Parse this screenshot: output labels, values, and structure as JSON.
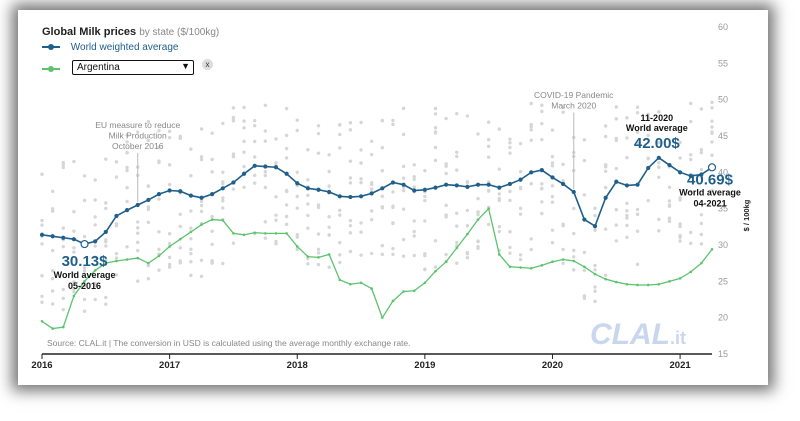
{
  "header": {
    "title": "Global Milk prices",
    "subtitle": "by state ($/100kg)"
  },
  "legend": {
    "world_label": "World weighted average",
    "country_selected": "Argentina",
    "close_symbol": "x"
  },
  "colors": {
    "world": "#1f5f8b",
    "country": "#5cc46e",
    "background_dots": "#d6d6d6",
    "annotation_gray": "#888888"
  },
  "source_note": "Source: CLAL.it | The conversion in USD is calculated using the average monthly exchange rate.",
  "watermark": "CLAL.it",
  "chart_data": {
    "type": "line",
    "ylabel": "$ / 100kg",
    "ylim": [
      15,
      60
    ],
    "y_ticks": [
      15,
      20,
      25,
      30,
      35,
      40,
      45,
      50,
      55,
      60
    ],
    "x_tick_labels": [
      "2016",
      "2017",
      "2018",
      "2019",
      "2020",
      "2021"
    ],
    "x_start": "2016-01",
    "x_end": "2021-04",
    "grid": false,
    "series": [
      {
        "name": "World weighted average",
        "months": [
          "2016-01",
          "2016-02",
          "2016-03",
          "2016-04",
          "2016-05",
          "2016-06",
          "2016-07",
          "2016-08",
          "2016-09",
          "2016-10",
          "2016-11",
          "2016-12",
          "2017-01",
          "2017-02",
          "2017-03",
          "2017-04",
          "2017-05",
          "2017-06",
          "2017-07",
          "2017-08",
          "2017-09",
          "2017-10",
          "2017-11",
          "2017-12",
          "2018-01",
          "2018-02",
          "2018-03",
          "2018-04",
          "2018-05",
          "2018-06",
          "2018-07",
          "2018-08",
          "2018-09",
          "2018-10",
          "2018-11",
          "2018-12",
          "2019-01",
          "2019-02",
          "2019-03",
          "2019-04",
          "2019-05",
          "2019-06",
          "2019-07",
          "2019-08",
          "2019-09",
          "2019-10",
          "2019-11",
          "2019-12",
          "2020-01",
          "2020-02",
          "2020-03",
          "2020-04",
          "2020-05",
          "2020-06",
          "2020-07",
          "2020-08",
          "2020-09",
          "2020-10",
          "2020-11",
          "2020-12",
          "2021-01",
          "2021-02",
          "2021-03",
          "2021-04"
        ],
        "values": [
          31.4,
          31.2,
          31.0,
          30.8,
          30.13,
          30.5,
          31.8,
          34.0,
          34.8,
          35.5,
          36.2,
          37.0,
          37.5,
          37.4,
          36.8,
          36.5,
          37.0,
          37.8,
          38.6,
          39.8,
          40.9,
          40.8,
          40.7,
          39.8,
          38.5,
          37.8,
          37.6,
          37.3,
          36.7,
          36.6,
          36.7,
          37.1,
          37.8,
          38.6,
          38.3,
          37.5,
          37.6,
          37.9,
          38.3,
          38.2,
          38.0,
          38.3,
          38.3,
          37.9,
          38.4,
          39.0,
          40.0,
          40.3,
          39.3,
          38.4,
          37.3,
          33.5,
          32.6,
          36.5,
          38.7,
          38.2,
          38.3,
          40.6,
          42.0,
          41.0,
          40.0,
          39.5,
          39.7,
          40.69
        ]
      },
      {
        "name": "Argentina",
        "months": [
          "2016-01",
          "2016-02",
          "2016-03",
          "2016-04",
          "2016-05",
          "2016-06",
          "2016-07",
          "2016-08",
          "2016-09",
          "2016-10",
          "2016-11",
          "2016-12",
          "2017-01",
          "2017-02",
          "2017-03",
          "2017-04",
          "2017-05",
          "2017-06",
          "2017-07",
          "2017-08",
          "2017-09",
          "2017-10",
          "2017-11",
          "2017-12",
          "2018-01",
          "2018-02",
          "2018-03",
          "2018-04",
          "2018-05",
          "2018-06",
          "2018-07",
          "2018-08",
          "2018-09",
          "2018-10",
          "2018-11",
          "2018-12",
          "2019-01",
          "2019-02",
          "2019-03",
          "2019-04",
          "2019-05",
          "2019-06",
          "2019-07",
          "2019-08",
          "2019-09",
          "2019-10",
          "2019-11",
          "2019-12",
          "2020-01",
          "2020-02",
          "2020-03",
          "2020-04",
          "2020-05",
          "2020-06",
          "2020-07",
          "2020-08",
          "2020-09",
          "2020-10",
          "2020-11",
          "2020-12",
          "2021-01",
          "2021-02",
          "2021-03",
          "2021-04"
        ],
        "values": [
          19.5,
          18.5,
          18.7,
          23.0,
          25.0,
          26.5,
          27.5,
          27.8,
          28.0,
          28.2,
          27.5,
          28.5,
          29.8,
          30.8,
          31.8,
          32.8,
          33.5,
          33.4,
          31.6,
          31.4,
          31.7,
          31.6,
          31.6,
          31.6,
          29.8,
          28.4,
          28.3,
          28.7,
          25.2,
          24.6,
          24.8,
          24.0,
          20.0,
          22.3,
          23.6,
          23.7,
          24.8,
          26.4,
          27.7,
          29.6,
          31.5,
          33.5,
          35.0,
          28.7,
          27.0,
          26.9,
          26.8,
          27.2,
          27.7,
          28.0,
          27.8,
          27.0,
          26.0,
          25.3,
          24.9,
          24.6,
          24.5,
          24.5,
          24.6,
          25.0,
          25.4,
          26.3,
          27.5,
          29.4
        ]
      }
    ],
    "annotations": [
      {
        "label_lines": [
          "EU measure to reduce",
          "Milk Production",
          "October 2016"
        ],
        "month": "2016-10"
      },
      {
        "label_lines": [
          "COVID-19 Pandemic",
          "March 2020"
        ],
        "month": "2020-03"
      }
    ],
    "callouts": [
      {
        "value_text": "30.13$",
        "line1": "World average",
        "line2": "05-2016",
        "month": "2016-05",
        "value": 30.13
      },
      {
        "value_text": "42.00$",
        "line1": "11-2020",
        "line2": "World average",
        "month": "2020-11",
        "value": 42.0
      },
      {
        "value_text": "40.69$",
        "line1": "World average",
        "line2": "04-2021",
        "month": "2021-04",
        "value": 40.69
      }
    ]
  }
}
